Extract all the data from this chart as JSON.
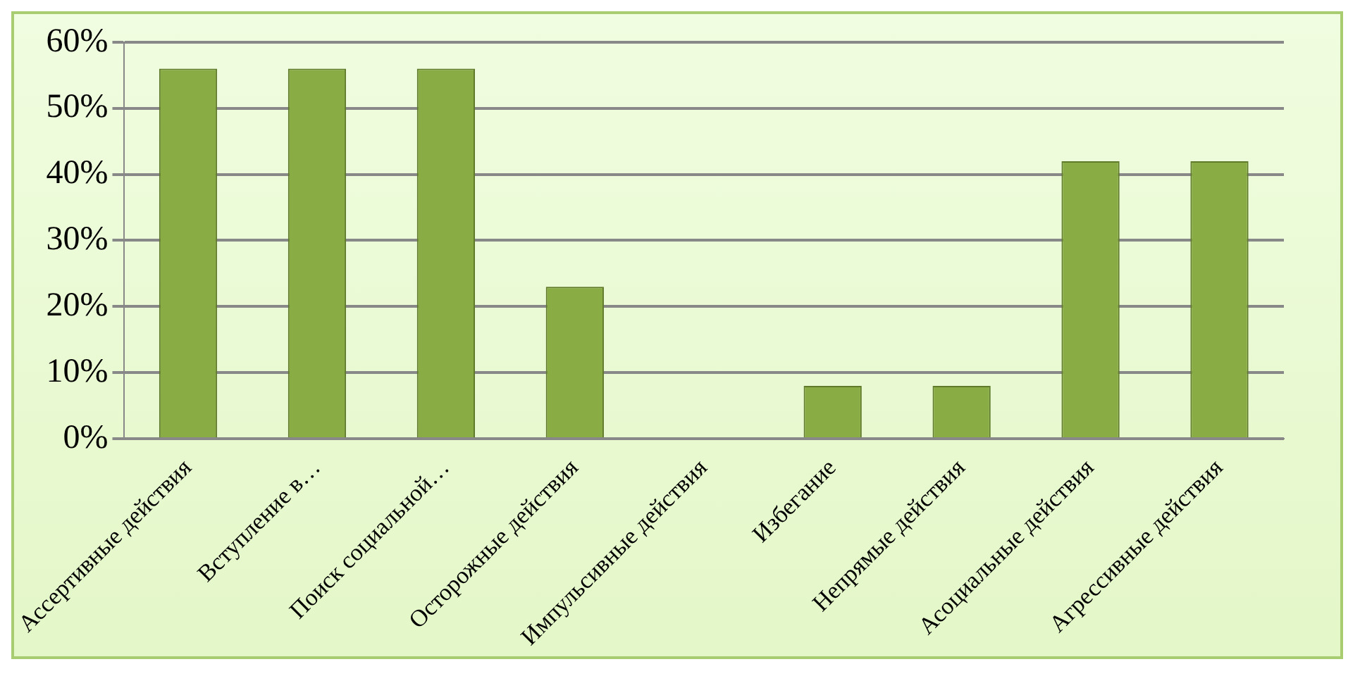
{
  "chart_data": {
    "type": "bar",
    "categories": [
      "Ассертивные действия",
      "Вступление в…",
      "Поиск социальной…",
      "Осторожные действия",
      "Импульсивные действия",
      "Избегание",
      "Непрямые действия",
      "Асоциальные действия",
      "Агрессивные действия"
    ],
    "values": [
      56,
      56,
      56,
      23,
      0,
      8,
      8,
      42,
      42
    ],
    "color": "#8aac44",
    "ylim": [
      0,
      60
    ],
    "yticks": [
      {
        "value": 0,
        "label": "0%"
      },
      {
        "value": 10,
        "label": "10%"
      },
      {
        "value": 20,
        "label": "20%"
      },
      {
        "value": 30,
        "label": "30%"
      },
      {
        "value": 40,
        "label": "40%"
      },
      {
        "value": 50,
        "label": "50%"
      },
      {
        "value": 60,
        "label": "60%"
      }
    ],
    "grid": "y",
    "legend": false
  }
}
